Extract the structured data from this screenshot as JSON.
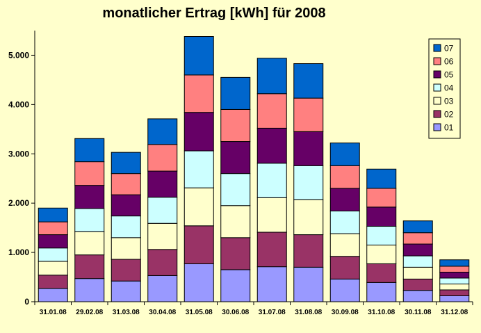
{
  "chart_data": {
    "type": "bar",
    "stacked": true,
    "title": "monatlicher Ertrag [kWh] für 2008",
    "xlabel": "",
    "ylabel": "",
    "ylim": [
      0,
      5500
    ],
    "y_ticks": [
      0,
      1000,
      2000,
      3000,
      4000,
      5000
    ],
    "y_tick_labels": [
      "0",
      "1.000",
      "2.000",
      "3.000",
      "4.000",
      "5.000"
    ],
    "grid": false,
    "legend_position": "top-right",
    "categories": [
      "31.01.08",
      "29.02.08",
      "31.03.08",
      "30.04.08",
      "31.05.08",
      "30.06.08",
      "31.07.08",
      "31.08.08",
      "30.09.08",
      "31.10.08",
      "30.11.08",
      "31.12.08"
    ],
    "series": [
      {
        "name": "01",
        "color": "#9999ff",
        "values": [
          270,
          470,
          420,
          530,
          770,
          650,
          710,
          700,
          460,
          390,
          230,
          120
        ]
      },
      {
        "name": "02",
        "color": "#993366",
        "values": [
          270,
          480,
          440,
          530,
          770,
          650,
          700,
          660,
          460,
          380,
          230,
          120
        ]
      },
      {
        "name": "03",
        "color": "#ffffcc",
        "values": [
          280,
          470,
          440,
          530,
          770,
          650,
          700,
          710,
          460,
          380,
          240,
          120
        ]
      },
      {
        "name": "04",
        "color": "#ccffff",
        "values": [
          270,
          470,
          440,
          530,
          750,
          650,
          700,
          690,
          460,
          380,
          230,
          120
        ]
      },
      {
        "name": "05",
        "color": "#660066",
        "values": [
          270,
          470,
          430,
          530,
          780,
          650,
          710,
          690,
          460,
          390,
          240,
          120
        ]
      },
      {
        "name": "06",
        "color": "#ff8080",
        "values": [
          260,
          480,
          430,
          540,
          760,
          650,
          700,
          680,
          460,
          380,
          230,
          120
        ]
      },
      {
        "name": "07",
        "color": "#0066cc",
        "values": [
          280,
          470,
          430,
          520,
          780,
          650,
          720,
          700,
          460,
          390,
          240,
          130
        ]
      }
    ]
  }
}
